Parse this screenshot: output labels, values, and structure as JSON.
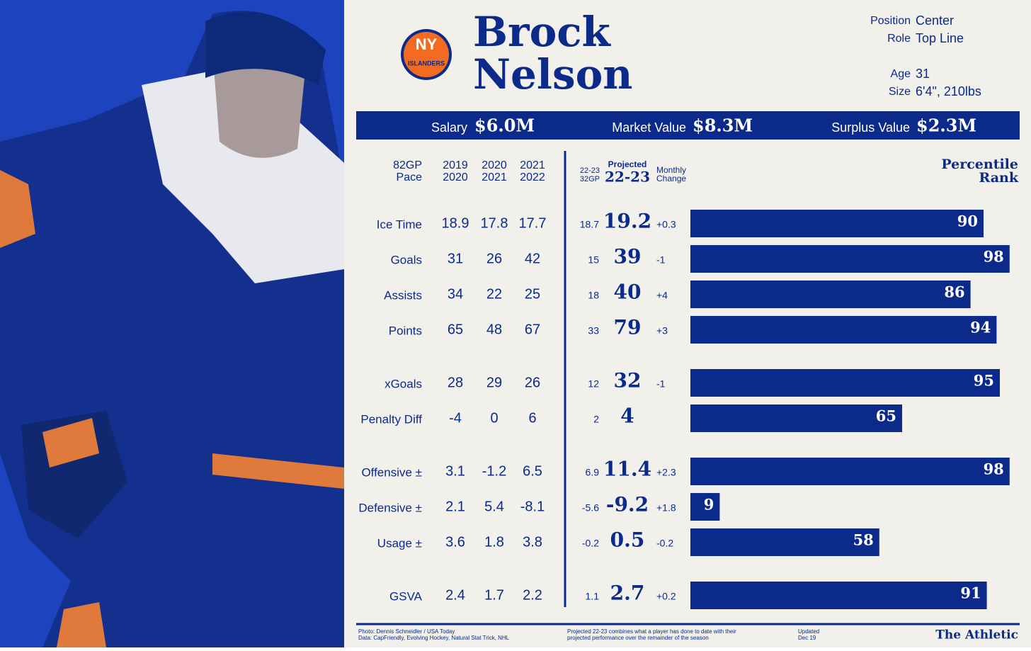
{
  "logo": {
    "top": "NY",
    "bottom": "ISLANDERS"
  },
  "player": {
    "first": "Brock",
    "last": "Nelson"
  },
  "info": [
    [
      "Position",
      "Center"
    ],
    [
      "Role",
      "Top Line"
    ],
    [
      "Age",
      "31"
    ],
    [
      "Size",
      "6'4\", 210lbs"
    ]
  ],
  "contract": [
    [
      "Salary",
      "$6.0M"
    ],
    [
      "Market Value",
      "$8.3M"
    ],
    [
      "Surplus Value",
      "$2.3M"
    ]
  ],
  "headers": {
    "pace": [
      "82GP",
      "Pace"
    ],
    "seasons": [
      [
        "2019",
        "2020"
      ],
      [
        "2020",
        "2021"
      ],
      [
        "2021",
        "2022"
      ]
    ],
    "current": [
      "22-23",
      "32GP"
    ],
    "projected": [
      "Projected",
      "22-23"
    ],
    "change": [
      "Monthly",
      "Change"
    ],
    "percentile": [
      "Percentile",
      "Rank"
    ]
  },
  "table": {
    "rows": [
      {
        "label": "Ice Time",
        "seasons": [
          18.9,
          17.8,
          17.7
        ],
        "current": 18.7,
        "projected": 19.2,
        "change": "+0.3",
        "percentile": 90
      },
      {
        "label": "Goals",
        "seasons": [
          31,
          26,
          42
        ],
        "current": 15,
        "projected": 39,
        "change": "-1",
        "percentile": 98
      },
      {
        "label": "Assists",
        "seasons": [
          34,
          22,
          25
        ],
        "current": 18,
        "projected": 40,
        "change": "+4",
        "percentile": 86
      },
      {
        "label": "Points",
        "seasons": [
          65,
          48,
          67
        ],
        "current": 33,
        "projected": 79,
        "change": "+3",
        "percentile": 94
      },
      {
        "label": "xGoals",
        "seasons": [
          28,
          29,
          26
        ],
        "current": 12,
        "projected": 32,
        "change": "-1",
        "percentile": 95
      },
      {
        "label": "Penalty Diff",
        "seasons": [
          -4,
          0,
          6
        ],
        "current": 2,
        "projected": 4,
        "change": null,
        "percentile": 65
      },
      {
        "label": "Offensive ±",
        "seasons": [
          3.1,
          -1.2,
          6.5
        ],
        "current": 6.9,
        "projected": 11.4,
        "change": "+2.3",
        "percentile": 98
      },
      {
        "label": "Defensive ±",
        "seasons": [
          2.1,
          5.4,
          -8.1
        ],
        "current": -5.6,
        "projected": -9.2,
        "change": "+1.8",
        "percentile": 9
      },
      {
        "label": "Usage ±",
        "seasons": [
          3.6,
          1.8,
          3.8
        ],
        "current": -0.2,
        "projected": 0.5,
        "change": "-0.2",
        "percentile": 58
      },
      {
        "label": "GSVA",
        "seasons": [
          2.4,
          1.7,
          2.2
        ],
        "current": 1.1,
        "projected": 2.7,
        "change": "+0.2",
        "percentile": 91
      }
    ]
  },
  "footer": {
    "credits": [
      "Photo: Dennis Schneidler / USA Today",
      "Data: CapFriendly, Evolving Hockey, Natural Stat Trick, NHL"
    ],
    "note": [
      "Projected 22-23 combines what a player has done to date with their",
      "projected performance over the remainder of the season"
    ],
    "updated": [
      "Updated",
      "Dec 19"
    ],
    "brand": "The Athletic"
  }
}
